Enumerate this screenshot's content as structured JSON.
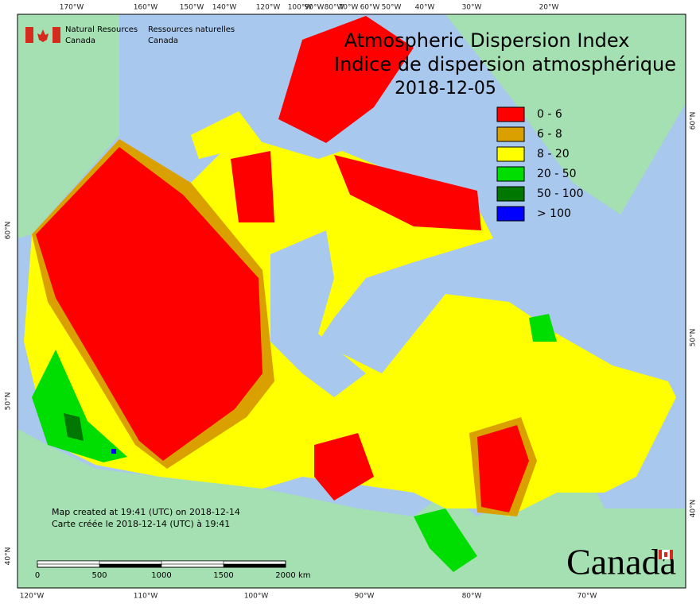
{
  "header": {
    "agency_en": [
      "Natural Resources",
      "Canada"
    ],
    "agency_fr": [
      "Ressources naturelles",
      "Canada"
    ]
  },
  "title": [
    "Atmospheric Dispersion Index",
    "Indice de dispersion atmosphérique"
  ],
  "date": "2018-12-05",
  "legend": [
    {
      "label": "0 - 6",
      "color": "#ff0000"
    },
    {
      "label": "6 - 8",
      "color": "#daa000"
    },
    {
      "label": "8 - 20",
      "color": "#ffff00"
    },
    {
      "label": "20 - 50",
      "color": "#00dd00"
    },
    {
      "label": "50 - 100",
      "color": "#007700"
    },
    {
      "label": "> 100",
      "color": "#0000ff"
    }
  ],
  "top_axis": [
    "170°W",
    "160°W",
    "150°W",
    "140°W",
    "120°W",
    "100°W",
    "90°W",
    "80°W",
    "70°W",
    "60°W",
    "50°W",
    "40°W",
    "30°W",
    "20°W"
  ],
  "bottom_axis": [
    "120°W",
    "110°W",
    "100°W",
    "90°W",
    "80°W",
    "70°W"
  ],
  "left_axis": [
    "60°N",
    "50°N",
    "40°N"
  ],
  "right_axis": [
    "60°N",
    "50°N",
    "40°N"
  ],
  "footer": [
    "Map created at 19:41 (UTC) on 2018-12-14",
    "Carte créée le 2018-12-14 (UTC) à 19:41"
  ],
  "scale_bar": {
    "labels": [
      "0",
      "500",
      "1000",
      "1500",
      "2000"
    ],
    "unit": "km"
  },
  "wordmark": "Canada"
}
